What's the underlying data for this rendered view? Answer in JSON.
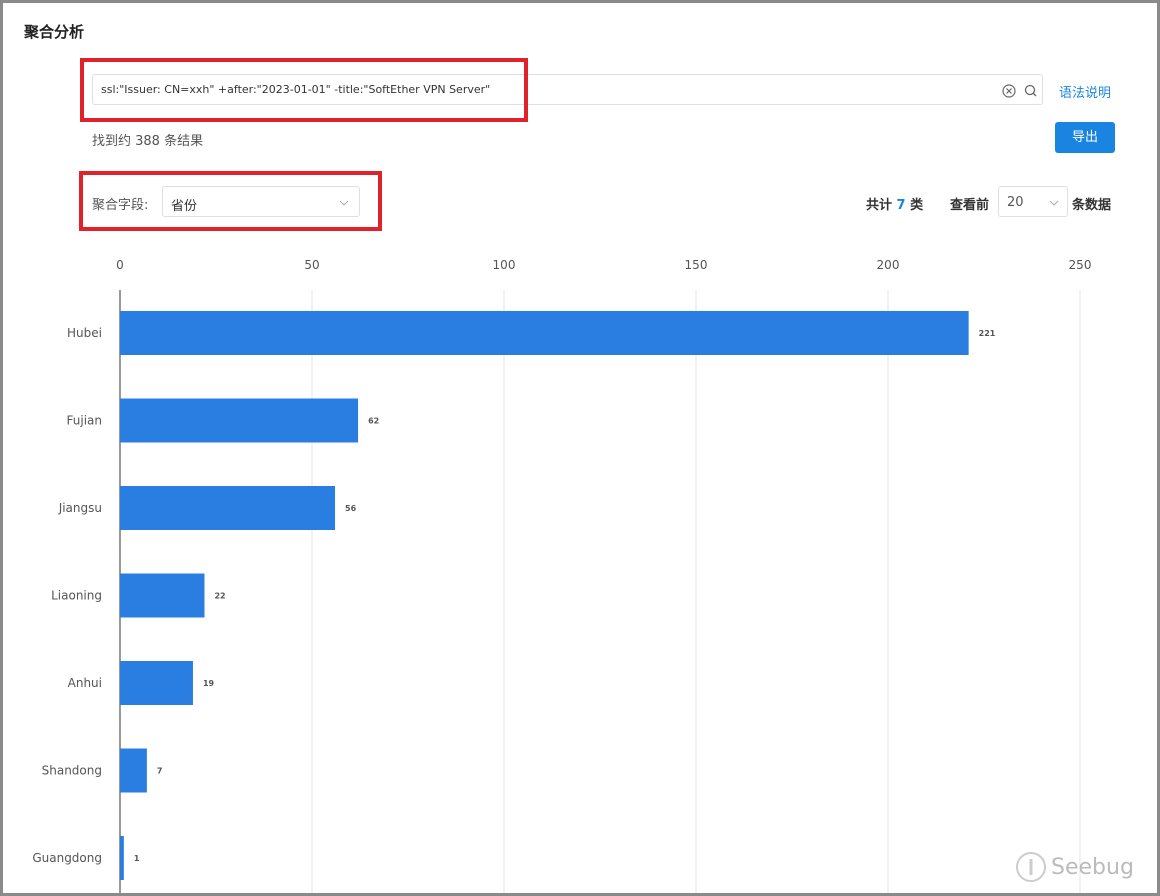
{
  "header": {
    "title": "聚合分析"
  },
  "search": {
    "query": "ssl:\"Issuer: CN=xxh\" +after:\"2023-01-01\" -title:\"SoftEther VPN Server\"",
    "syntax_link": "语法说明"
  },
  "results": {
    "text": "找到约 388 条结果",
    "export": "导出"
  },
  "controls": {
    "field_label": "聚合字段:",
    "field_value": "省份",
    "total_prefix": "共计",
    "total_count": 7,
    "total_suffix": "类",
    "top_prefix": "查看前",
    "top_value": 20,
    "top_suffix": "条数据"
  },
  "watermark": "Seebug",
  "chart_data": {
    "type": "bar",
    "orientation": "horizontal",
    "categories": [
      "Hubei",
      "Fujian",
      "Jiangsu",
      "Liaoning",
      "Anhui",
      "Shandong",
      "Guangdong"
    ],
    "values": [
      221,
      62,
      56,
      22,
      19,
      7,
      1
    ],
    "color": "#2a7de1",
    "xlim": [
      0,
      250
    ],
    "xticks": [
      0,
      50,
      100,
      150,
      200,
      250
    ],
    "grid": true
  }
}
